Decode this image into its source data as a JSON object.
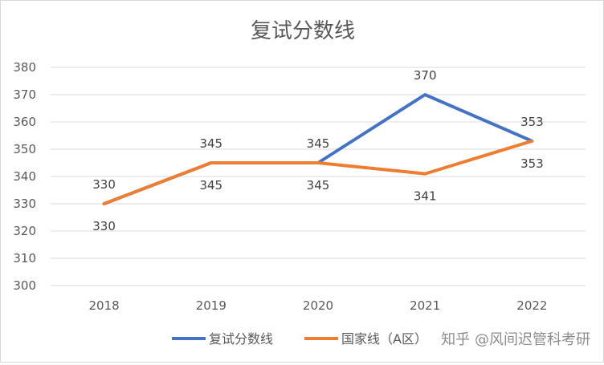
{
  "chart_data": {
    "type": "line",
    "title": "复试分数线",
    "categories": [
      "2018",
      "2019",
      "2020",
      "2021",
      "2022"
    ],
    "series": [
      {
        "name": "复试分数线",
        "values": [
          330,
          345,
          345,
          370,
          353
        ],
        "color": "#4472C4"
      },
      {
        "name": "国家线（A区）",
        "values": [
          330,
          345,
          345,
          341,
          353
        ],
        "color": "#ED7D31"
      }
    ],
    "ylim": [
      300,
      380
    ],
    "y_ticks": [
      "300",
      "310",
      "320",
      "330",
      "340",
      "350",
      "360",
      "370",
      "380"
    ],
    "grid": true,
    "legend": "bottom"
  },
  "watermark": "知乎 @风间迟管科考研"
}
